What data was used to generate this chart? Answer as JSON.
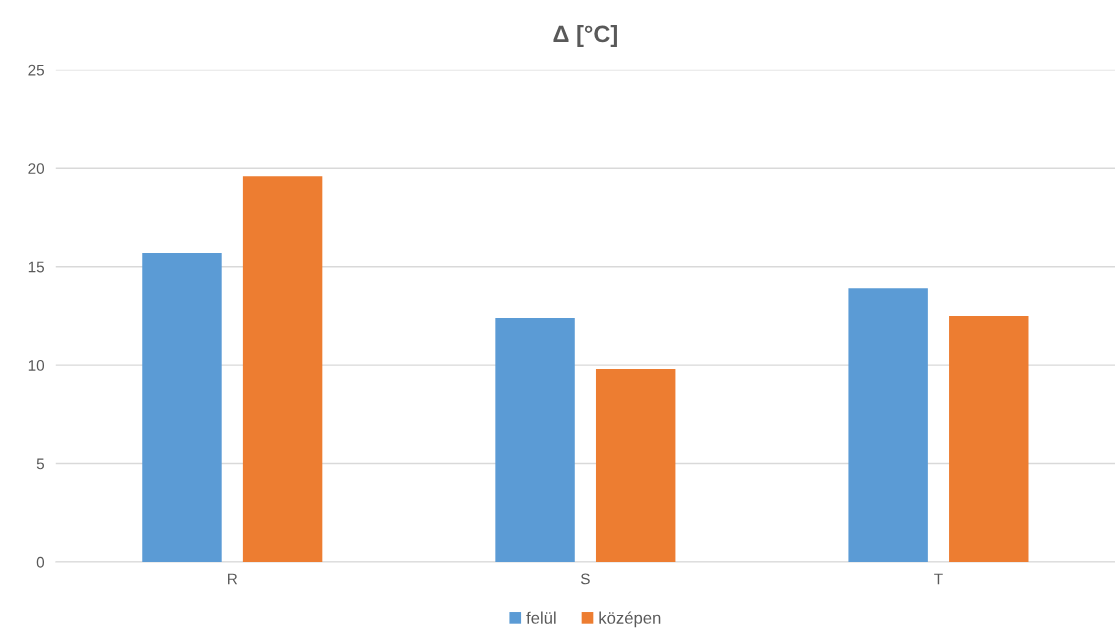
{
  "chart_data": {
    "type": "bar",
    "title": "Δ [°C]",
    "categories": [
      "R",
      "S",
      "T"
    ],
    "series": [
      {
        "name": "felül",
        "color": "#5b9bd5",
        "values": [
          15.7,
          12.4,
          13.9
        ]
      },
      {
        "name": "középen",
        "color": "#ed7d31",
        "values": [
          19.6,
          9.8,
          12.5
        ]
      }
    ],
    "ylim": [
      0,
      25
    ],
    "yticks": [
      0,
      5,
      10,
      15,
      20,
      25
    ],
    "grid": "y",
    "legend": "bottom"
  }
}
